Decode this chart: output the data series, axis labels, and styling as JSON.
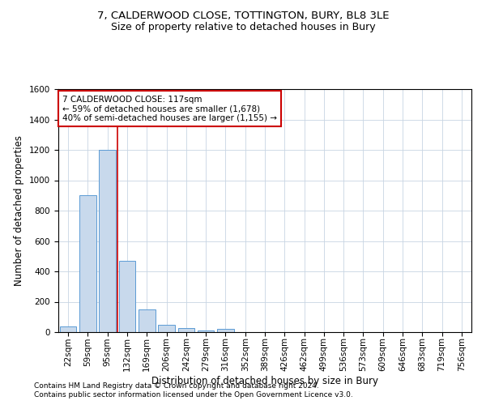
{
  "title1": "7, CALDERWOOD CLOSE, TOTTINGTON, BURY, BL8 3LE",
  "title2": "Size of property relative to detached houses in Bury",
  "xlabel": "Distribution of detached houses by size in Bury",
  "ylabel": "Number of detached properties",
  "categories": [
    "22sqm",
    "59sqm",
    "95sqm",
    "132sqm",
    "169sqm",
    "206sqm",
    "242sqm",
    "279sqm",
    "316sqm",
    "352sqm",
    "389sqm",
    "426sqm",
    "462sqm",
    "499sqm",
    "536sqm",
    "573sqm",
    "609sqm",
    "646sqm",
    "683sqm",
    "719sqm",
    "756sqm"
  ],
  "bar_values": [
    40,
    900,
    1200,
    470,
    150,
    50,
    25,
    10,
    20,
    0,
    0,
    0,
    0,
    0,
    0,
    0,
    0,
    0,
    0,
    0,
    0
  ],
  "bar_color": "#c8d9ec",
  "bar_edge_color": "#5b9bd5",
  "vline_x_index": 2.5,
  "vline_color": "#cc0000",
  "ylim": [
    0,
    1600
  ],
  "yticks": [
    0,
    200,
    400,
    600,
    800,
    1000,
    1200,
    1400,
    1600
  ],
  "annotation_text": "7 CALDERWOOD CLOSE: 117sqm\n← 59% of detached houses are smaller (1,678)\n40% of semi-detached houses are larger (1,155) →",
  "annotation_box_color": "#ffffff",
  "annotation_box_edge": "#cc0000",
  "footer1": "Contains HM Land Registry data © Crown copyright and database right 2024.",
  "footer2": "Contains public sector information licensed under the Open Government Licence v3.0.",
  "bg_color": "#ffffff",
  "grid_color": "#c8d4e3",
  "title1_fontsize": 9.5,
  "title2_fontsize": 9,
  "axis_label_fontsize": 8.5,
  "tick_fontsize": 7.5,
  "footer_fontsize": 6.5,
  "annotation_fontsize": 7.5
}
